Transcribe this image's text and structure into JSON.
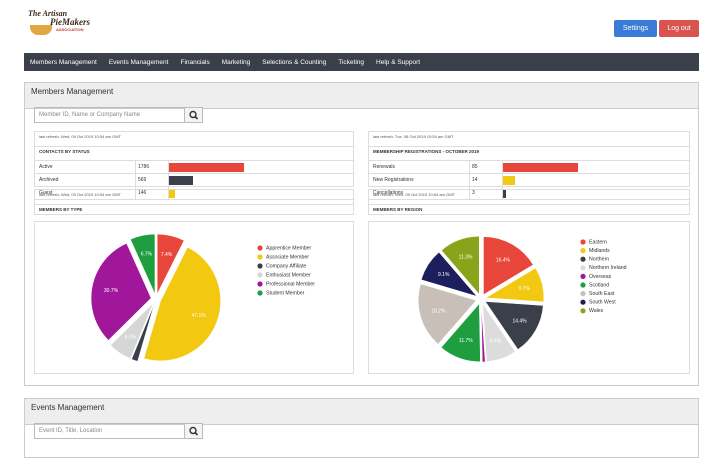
{
  "header": {
    "logo_line1": "The Artisan",
    "logo_line2": "PieMakers",
    "logo_line3": "ASSOCIATION",
    "settings": "Settings",
    "logout": "Log out"
  },
  "nav": [
    "Members Management",
    "Events Management",
    "Financials",
    "Marketing",
    "Selections & Counting",
    "Ticketing",
    "Help & Support"
  ],
  "members_panel": {
    "title": "Members Management",
    "search_placeholder": "Member ID, Name or Company Name",
    "status": {
      "refresh": "last refresh: Wed, 09 Oct 2019 10:54 am GMT",
      "title": "CONTACTS BY STATUS",
      "colors": [
        "#e8463a",
        "#3b3f4a",
        "#f2c811"
      ],
      "rows": [
        {
          "label": "Active",
          "value": 1786
        },
        {
          "label": "Archived",
          "value": 569
        },
        {
          "label": "Guest",
          "value": 146
        }
      ]
    },
    "registrations": {
      "refresh": "last refresh: Tue, 08 Oct 2019 10:54 am GMT",
      "title": "MEMBERSHIP REGISTRATIONS - OCTOBER 2019",
      "colors": [
        "#e8463a",
        "#f2c811",
        "#3b3f4a"
      ],
      "rows": [
        {
          "label": "Renewals",
          "value": 85
        },
        {
          "label": "New Registrations",
          "value": 14
        },
        {
          "label": "Cancellations",
          "value": 3
        }
      ]
    },
    "by_type": {
      "refresh": "last refresh: Wed, 09 Oct 2019 10:54 am GMT",
      "title": "MEMBERS BY TYPE",
      "chart": {
        "type": "pie",
        "categories": [
          "Apprentice Member",
          "Associate Member",
          "Company Affiliate",
          "Enthusiast Member",
          "Professional Member",
          "Student Member"
        ],
        "values": [
          7.4,
          47.1,
          1.7,
          6.4,
          30.7,
          6.7
        ],
        "value_labels": [
          "7.4%",
          "47.1%",
          null,
          "6.4%",
          "30.7%",
          "6.7%"
        ],
        "colors": [
          "#e8463a",
          "#f2c811",
          "#3b3f4a",
          "#d6d6d6",
          "#a0179b",
          "#1f9e3f"
        ]
      }
    },
    "by_region": {
      "refresh": "last refresh: Wed, 09 Oct 2019 10:54 am GMT",
      "title": "MEMBERS BY REGION",
      "chart": {
        "type": "pie",
        "categories": [
          "Eastern",
          "Midlands",
          "Northern",
          "Northern Ireland",
          "Overseas",
          "Scotland",
          "South East",
          "South West",
          "Wales"
        ],
        "values": [
          16.4,
          9.7,
          14.4,
          8.4,
          0.8,
          11.7,
          18.2,
          9.1,
          11.3
        ],
        "value_labels": [
          "16.4%",
          "9.7%",
          "14.4%",
          "8.4%",
          null,
          "11.7%",
          "18.2%",
          "9.1%",
          "11.3%"
        ],
        "colors": [
          "#e8463a",
          "#f2c811",
          "#3b3f4a",
          "#dcdcdc",
          "#a0179b",
          "#1f9e3f",
          "#c8c0b8",
          "#1c1f5c",
          "#8aa31a"
        ]
      }
    }
  },
  "events_panel": {
    "title": "Events Management",
    "search_placeholder": "Event ID, Title, Location"
  }
}
